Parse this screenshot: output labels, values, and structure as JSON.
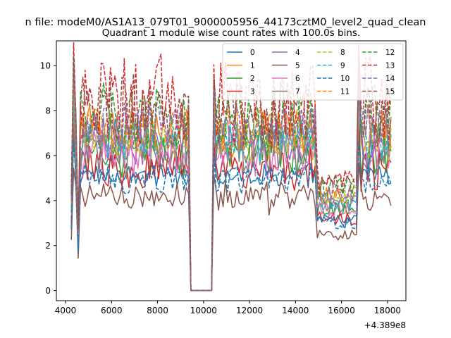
{
  "figure": {
    "suptitle": "n file: modeM0/AS1A13_079T01_9000005956_44173cztM0_level2_quad_clean",
    "offset_label": "+4.389e8"
  },
  "chart_data": {
    "type": "line",
    "title": "Quadrant 1 module wise count rates with 100.0s bins.",
    "xlabel": "",
    "ylabel": "",
    "xlim": [
      3600,
      18800
    ],
    "ylim": [
      -0.45,
      11.1
    ],
    "x_offset": 438900000,
    "x_ticks": [
      4000,
      6000,
      8000,
      10000,
      12000,
      14000,
      16000,
      18000
    ],
    "x_tick_labels": [
      "4000",
      "6000",
      "8000",
      "10000",
      "12000",
      "14000",
      "16000",
      "18000"
    ],
    "y_ticks": [
      0,
      2,
      4,
      6,
      8,
      10
    ],
    "y_tick_labels": [
      "0",
      "2",
      "4",
      "6",
      "8",
      "10"
    ],
    "grid": false,
    "legend": {
      "placement": "top-right",
      "columns": 4
    },
    "segments": [
      {
        "x0": 4250,
        "x1": 9400
      },
      {
        "x0": 10400,
        "x1": 14900
      },
      {
        "x0": 16700,
        "x1": 18150
      }
    ],
    "series": [
      {
        "name": "0",
        "color": "#1f77b4",
        "dashed": false,
        "level": 5.6,
        "noise": 0.15
      },
      {
        "name": "1",
        "color": "#ff7f0e",
        "dashed": false,
        "level": 7.7,
        "noise": 0.25
      },
      {
        "name": "2",
        "color": "#2ca02c",
        "dashed": false,
        "level": 6.6,
        "noise": 0.3
      },
      {
        "name": "3",
        "color": "#d62728",
        "dashed": false,
        "level": 5.9,
        "noise": 0.3
      },
      {
        "name": "4",
        "color": "#9467bd",
        "dashed": false,
        "level": 7.2,
        "noise": 0.25
      },
      {
        "name": "5",
        "color": "#8c564b",
        "dashed": false,
        "level": 4.5,
        "noise": 0.25
      },
      {
        "name": "6",
        "color": "#e377c2",
        "dashed": false,
        "level": 6.6,
        "noise": 0.3
      },
      {
        "name": "7",
        "color": "#7f7f7f",
        "dashed": false,
        "level": 7.0,
        "noise": 0.35
      },
      {
        "name": "8",
        "color": "#bcbd22",
        "dashed": true,
        "level": 7.4,
        "noise": 0.25
      },
      {
        "name": "9",
        "color": "#17becf",
        "dashed": true,
        "level": 7.3,
        "noise": 0.25
      },
      {
        "name": "10",
        "color": "#1f77b4",
        "dashed": true,
        "level": 5.4,
        "noise": 0.2
      },
      {
        "name": "11",
        "color": "#ff7f0e",
        "dashed": true,
        "level": 7.8,
        "noise": 0.25
      },
      {
        "name": "12",
        "color": "#2ca02c",
        "dashed": true,
        "level": 8.4,
        "noise": 0.3
      },
      {
        "name": "13",
        "color": "#d62728",
        "dashed": true,
        "level": 9.1,
        "noise": 0.4
      },
      {
        "name": "14",
        "color": "#9467bd",
        "dashed": true,
        "level": 8.0,
        "noise": 0.25
      },
      {
        "name": "15",
        "color": "#8c564b",
        "dashed": true,
        "level": 8.6,
        "noise": 0.35
      }
    ]
  }
}
